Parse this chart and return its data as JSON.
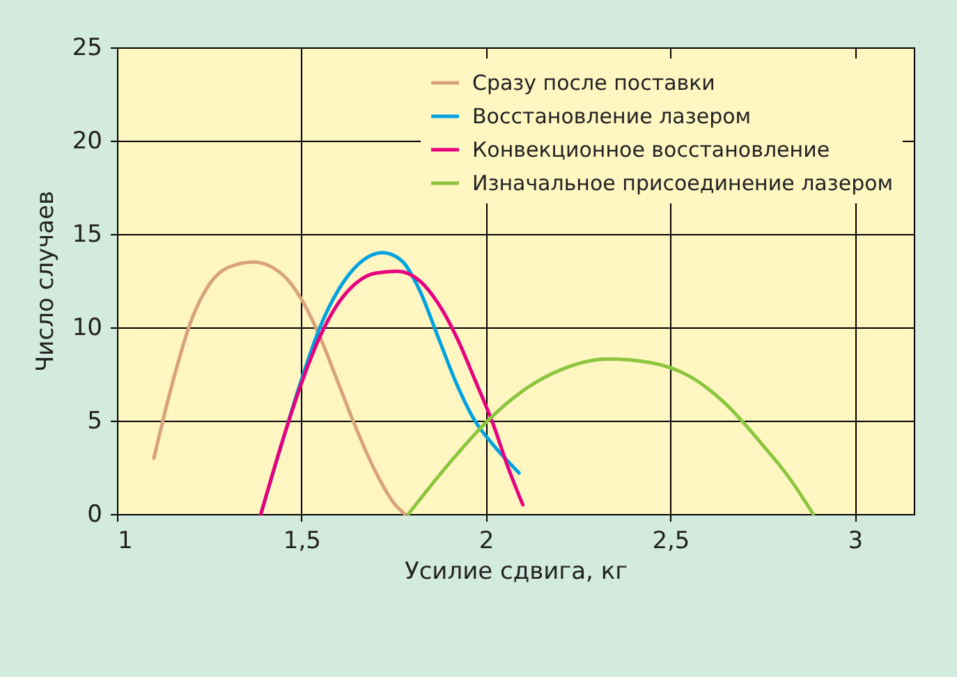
{
  "chart_data": {
    "type": "line",
    "xlabel": "Усилие сдвига, кг",
    "ylabel": "Число случаев",
    "xlim": [
      1,
      3.16
    ],
    "ylim": [
      0,
      25
    ],
    "xticks": [
      1,
      {
        "value": 1.5,
        "label": "1,5"
      },
      2,
      {
        "value": 2.5,
        "label": "2,5"
      },
      3
    ],
    "yticks": [
      0,
      5,
      10,
      15,
      20,
      25
    ],
    "grid": true,
    "legend": "top right",
    "series": [
      {
        "name": "Сразу после поставки",
        "color": "#d9a37a",
        "x": [
          1.1,
          1.15,
          1.2,
          1.25,
          1.3,
          1.37,
          1.45,
          1.5,
          1.55,
          1.6,
          1.65,
          1.7,
          1.75,
          1.78
        ],
        "values": [
          3,
          7,
          10.3,
          12.3,
          13.2,
          13.5,
          12.8,
          11.5,
          9.5,
          7,
          4.5,
          2.3,
          0.6,
          0
        ]
      },
      {
        "name": "Восстановление лазером",
        "color": "#00a3e0",
        "x": [
          1.39,
          1.45,
          1.5,
          1.55,
          1.6,
          1.65,
          1.72,
          1.77,
          1.82,
          1.87,
          1.92,
          1.97,
          2.02,
          2.09
        ],
        "values": [
          0,
          4,
          7.2,
          10,
          12,
          13.3,
          14,
          13.6,
          12,
          9.5,
          7,
          5,
          3.7,
          2.2
        ]
      },
      {
        "name": "Конвекционное восстановление",
        "color": "#e6007e",
        "x": [
          1.39,
          1.45,
          1.5,
          1.55,
          1.6,
          1.65,
          1.7,
          1.76,
          1.82,
          1.87,
          1.92,
          1.97,
          2.02,
          2.06,
          2.1
        ],
        "values": [
          0,
          4,
          7,
          9.5,
          11.3,
          12.4,
          12.9,
          13,
          12.5,
          11.3,
          9.5,
          7.2,
          4.8,
          2.5,
          0.5
        ]
      },
      {
        "name": "Изначальное присоединение лазером",
        "color": "#8cc63f",
        "x": [
          1.79,
          1.9,
          2.0,
          2.1,
          2.2,
          2.33,
          2.45,
          2.55,
          2.65,
          2.75,
          2.82,
          2.887
        ],
        "values": [
          0,
          2.7,
          4.9,
          6.6,
          7.7,
          8.3,
          8.1,
          7.4,
          5.9,
          3.7,
          2,
          0
        ]
      }
    ]
  }
}
